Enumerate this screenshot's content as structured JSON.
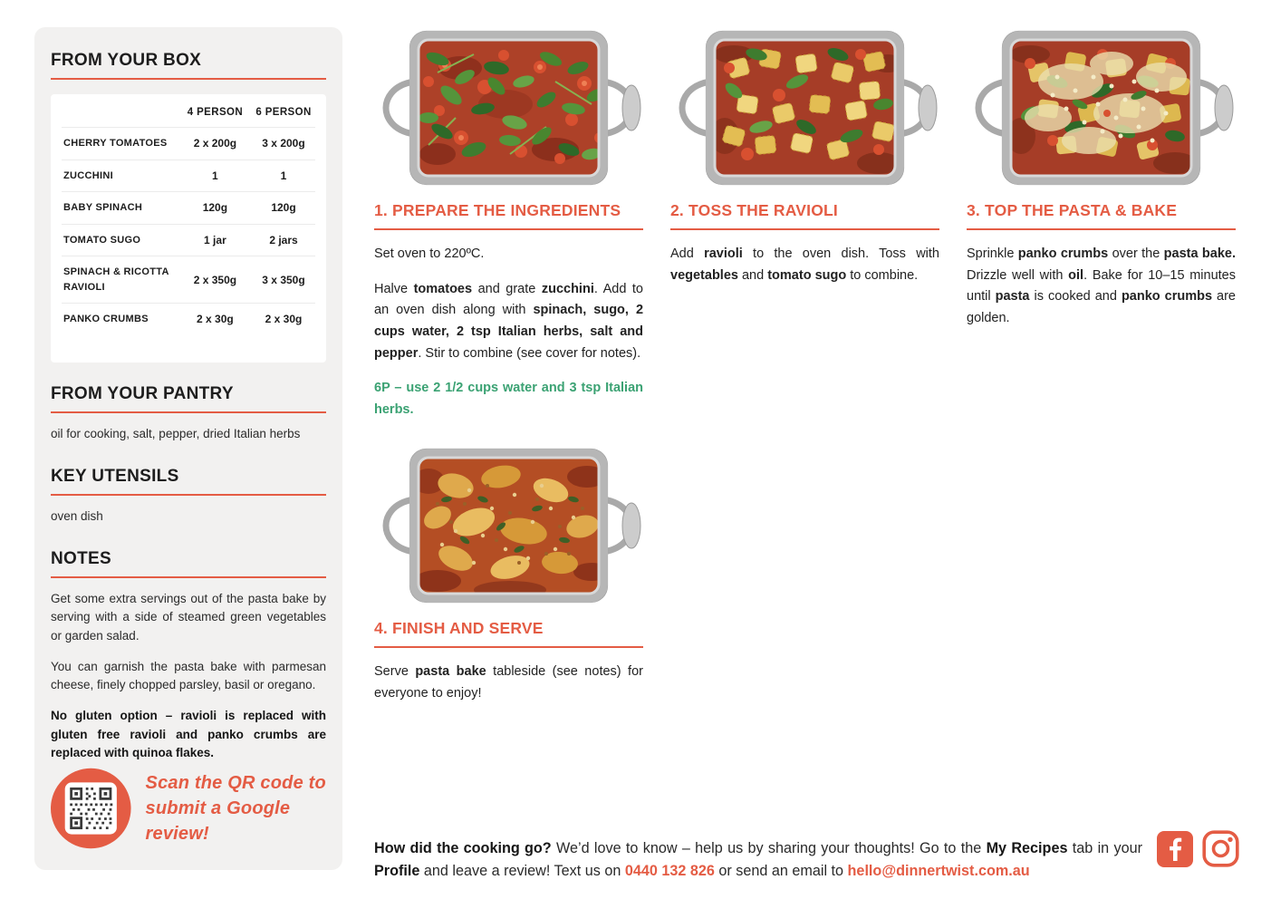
{
  "colors": {
    "accent_orange": "#E45C44",
    "accent_green": "#3BA273"
  },
  "sidebar": {
    "from_your_box": {
      "title": "FROM YOUR BOX",
      "table": {
        "col_headers": [
          "4 PERSON",
          "6 PERSON"
        ],
        "rows": [
          {
            "item": "CHERRY TOMATOES",
            "four": "2 x 200g",
            "six": "3 x 200g"
          },
          {
            "item": "ZUCCHINI",
            "four": "1",
            "six": "1"
          },
          {
            "item": "BABY SPINACH",
            "four": "120g",
            "six": "120g"
          },
          {
            "item": "TOMATO SUGO",
            "four": "1 jar",
            "six": "2 jars"
          },
          {
            "item": "SPINACH & RICOTTA RAVIOLI",
            "four": "2 x 350g",
            "six": "3 x 350g"
          },
          {
            "item": "PANKO CRUMBS",
            "four": "2 x 30g",
            "six": "2 x 30g"
          }
        ]
      }
    },
    "from_your_pantry": {
      "title": "FROM YOUR PANTRY",
      "text": "oil for cooking, salt, pepper, dried Italian herbs"
    },
    "key_utensils": {
      "title": "KEY UTENSILS",
      "text": "oven dish"
    },
    "notes": {
      "title": "NOTES",
      "paragraphs": [
        [
          {
            "t": "Get some extra servings out of the pasta bake by serving with a side of steamed green vegetables or garden salad."
          }
        ],
        [
          {
            "t": "You can garnish the pasta bake with parmesan cheese, finely chopped parsley, basil or oregano."
          }
        ],
        [
          {
            "t": "No gluten option – ravioli is replaced with gluten free ravioli and panko crumbs are replaced with quinoa flakes.",
            "b": true
          }
        ]
      ]
    },
    "qr": {
      "caption": "Scan the QR code to\nsubmit a Google review!"
    }
  },
  "steps": [
    {
      "title": "1. PREPARE THE INGREDIENTS",
      "paragraphs": [
        [
          {
            "t": "Set oven to 220ºC."
          }
        ],
        [
          {
            "t": "Halve "
          },
          {
            "t": "tomatoes",
            "b": true
          },
          {
            "t": " and grate "
          },
          {
            "t": "zucchini",
            "b": true
          },
          {
            "t": ". Add to an oven dish along with "
          },
          {
            "t": "spinach, sugo, 2 cups water, 2 tsp Italian herbs, salt and pepper",
            "b": true
          },
          {
            "t": ". Stir to combine (see cover for notes)."
          }
        ],
        [
          {
            "t": "6P – use 2 1/2 cups water and 3 tsp Italian herbs.",
            "b": true
          }
        ]
      ]
    },
    {
      "title": "2. TOSS THE RAVIOLI",
      "paragraphs": [
        [
          {
            "t": "Add "
          },
          {
            "t": "ravioli",
            "b": true
          },
          {
            "t": " to the oven dish. Toss with "
          },
          {
            "t": "vegetables",
            "b": true
          },
          {
            "t": " and "
          },
          {
            "t": "tomato sugo",
            "b": true
          },
          {
            "t": " to combine."
          }
        ]
      ]
    },
    {
      "title": "3. TOP THE PASTA & BAKE",
      "paragraphs": [
        [
          {
            "t": "Sprinkle "
          },
          {
            "t": "panko crumbs",
            "b": true
          },
          {
            "t": " over the "
          },
          {
            "t": "pasta bake.",
            "b": true
          },
          {
            "t": " Drizzle well with "
          },
          {
            "t": "oil",
            "b": true
          },
          {
            "t": ". Bake for 10–15 minutes until "
          },
          {
            "t": "pasta",
            "b": true
          },
          {
            "t": " is cooked and "
          },
          {
            "t": "panko crumbs",
            "b": true
          },
          {
            "t": " are golden."
          }
        ]
      ]
    },
    {
      "title": "4. FINISH AND SERVE",
      "paragraphs": [
        [
          {
            "t": "Serve "
          },
          {
            "t": "pasta bake",
            "b": true
          },
          {
            "t": " tableside (see notes) for everyone to enjoy!"
          }
        ]
      ]
    }
  ],
  "footer": {
    "message": [
      {
        "t": "How did the cooking go?",
        "b": true
      },
      {
        "t": " We’d love to know – help us by sharing your thoughts! Go to the "
      },
      {
        "t": "My Recipes",
        "b": true
      },
      {
        "t": " tab in your "
      },
      {
        "t": "Profile",
        "b": true
      },
      {
        "t": " and leave a review! Text us on "
      },
      {
        "t": "0440 132 826",
        "b": true,
        "color": "#E45C44"
      },
      {
        "t": " or send an email to "
      },
      {
        "t": "hello@dinnertwist.com.au",
        "b": true,
        "color": "#E45C44"
      }
    ],
    "social": {
      "facebook": "facebook",
      "instagram": "instagram"
    }
  }
}
